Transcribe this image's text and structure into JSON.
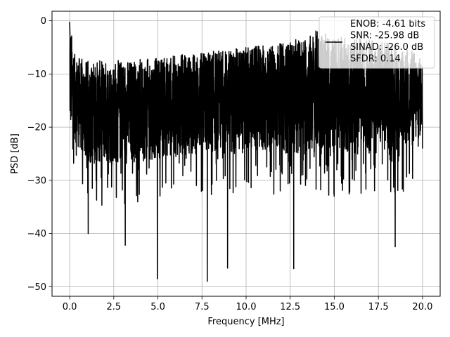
{
  "chart_data": {
    "type": "line",
    "title": "",
    "xlabel": "Frequency [MHz]",
    "ylabel": "PSD [dB]",
    "xlim": [
      -1.0,
      21.0
    ],
    "ylim": [
      -51.8,
      1.8
    ],
    "xticks": [
      0.0,
      2.5,
      5.0,
      7.5,
      10.0,
      12.5,
      15.0,
      17.5,
      20.0
    ],
    "xtick_labels": [
      "0.0",
      "2.5",
      "5.0",
      "7.5",
      "10.0",
      "12.5",
      "15.0",
      "17.5",
      "20.0"
    ],
    "yticks": [
      0,
      -10,
      -20,
      -30,
      -40,
      -50
    ],
    "ytick_labels": [
      "0",
      "−10",
      "−20",
      "−30",
      "−40",
      "−50"
    ],
    "grid": true,
    "legend_position": "top-right",
    "legend_lines": [
      "ENOB: -4.61 bits",
      "SNR: -25.98 dB",
      "SINAD: -26.0 dB",
      "SFDR: 0.14"
    ],
    "series": [
      {
        "color": "#000000",
        "x_range": [
          0.0,
          20.0
        ],
        "upper_envelope_x": [
          0.0,
          0.05,
          0.3,
          1.0,
          2.0,
          3.5,
          5.0,
          7.5,
          10.0,
          12.5,
          14.0,
          15.0,
          17.5,
          19.5,
          20.0
        ],
        "upper_envelope_y": [
          -0.2,
          -1.0,
          -6.5,
          -7.5,
          -7.5,
          -7.3,
          -7.0,
          -5.8,
          -5.0,
          -4.0,
          -1.8,
          -3.0,
          -3.5,
          -5.5,
          -7.5
        ],
        "lower_envelope_x": [
          0.0,
          1.0,
          3.0,
          5.0,
          7.5,
          10.0,
          12.5,
          15.0,
          17.5,
          19.5,
          20.0
        ],
        "lower_envelope_y": [
          -21.0,
          -27.0,
          -27.0,
          -26.0,
          -25.0,
          -25.0,
          -25.0,
          -25.0,
          -25.0,
          -24.0,
          -21.5
        ],
        "notable_dips": [
          {
            "x": 1.05,
            "y": -40.0
          },
          {
            "x": 3.15,
            "y": -42.2
          },
          {
            "x": 4.97,
            "y": -48.5
          },
          {
            "x": 7.8,
            "y": -49.0
          },
          {
            "x": 8.95,
            "y": -46.5
          },
          {
            "x": 12.7,
            "y": -46.6
          },
          {
            "x": 18.45,
            "y": -42.5
          }
        ]
      }
    ]
  }
}
